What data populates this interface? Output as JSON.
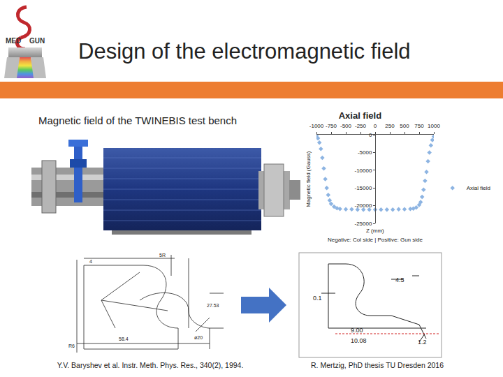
{
  "slide": {
    "title": "Design of the electromagnetic field",
    "logo": {
      "top": "MED",
      "bottom": "GUN"
    },
    "left_heading": "Magnetic field of the TWINEBIS test bench",
    "left_drawing": {
      "labels": [
        "4",
        "5R",
        "27.53",
        "58.4",
        "R6",
        "ø20"
      ],
      "caption": "Y.V. Baryshev et al. Instr. Meth. Phys. Res., 340(2), 1994."
    },
    "right_drawing": {
      "labels": [
        "0.1",
        "4.5",
        "9.00",
        "10.08",
        "1.2"
      ],
      "caption": "R. Mertzig, PhD thesis TU Dresden 2016"
    }
  },
  "chart_data": {
    "type": "scatter",
    "title": "Axial field",
    "xlabel": "Z (mm)",
    "ylabel": "Magnetic field (Gauss)",
    "annotation": "Negative: Col side | Positive: Gun side",
    "x": [
      -1000,
      -975,
      -950,
      -925,
      -900,
      -875,
      -850,
      -825,
      -800,
      -775,
      -750,
      -700,
      -650,
      -600,
      -500,
      -400,
      -300,
      -200,
      -100,
      0,
      100,
      200,
      300,
      400,
      500,
      600,
      650,
      700,
      750,
      775,
      800,
      825,
      850,
      875,
      900,
      925,
      950,
      975,
      1000
    ],
    "series": [
      {
        "name": "Axial field",
        "color": "#8db4e2",
        "marker": "diamond",
        "values": [
          -300,
          -1000,
          -2200,
          -4000,
          -6500,
          -9500,
          -12500,
          -15000,
          -17000,
          -18500,
          -19500,
          -20300,
          -20700,
          -20900,
          -21000,
          -21000,
          -21100,
          -21100,
          -21100,
          -21100,
          -21100,
          -21100,
          -21100,
          -21000,
          -21000,
          -20900,
          -20800,
          -20500,
          -19800,
          -19000,
          -17500,
          -15500,
          -13000,
          -10500,
          -7500,
          -5000,
          -3000,
          -1500,
          -500
        ]
      }
    ],
    "xlim": [
      -1000,
      1000
    ],
    "xticks": [
      -1000,
      -750,
      -500,
      -250,
      0,
      250,
      500,
      750,
      1000
    ],
    "ylim": [
      -25000,
      0
    ],
    "yticks": [
      0,
      -5000,
      -10000,
      -15000,
      -20000,
      -25000
    ],
    "grid": false,
    "legend": "right"
  }
}
